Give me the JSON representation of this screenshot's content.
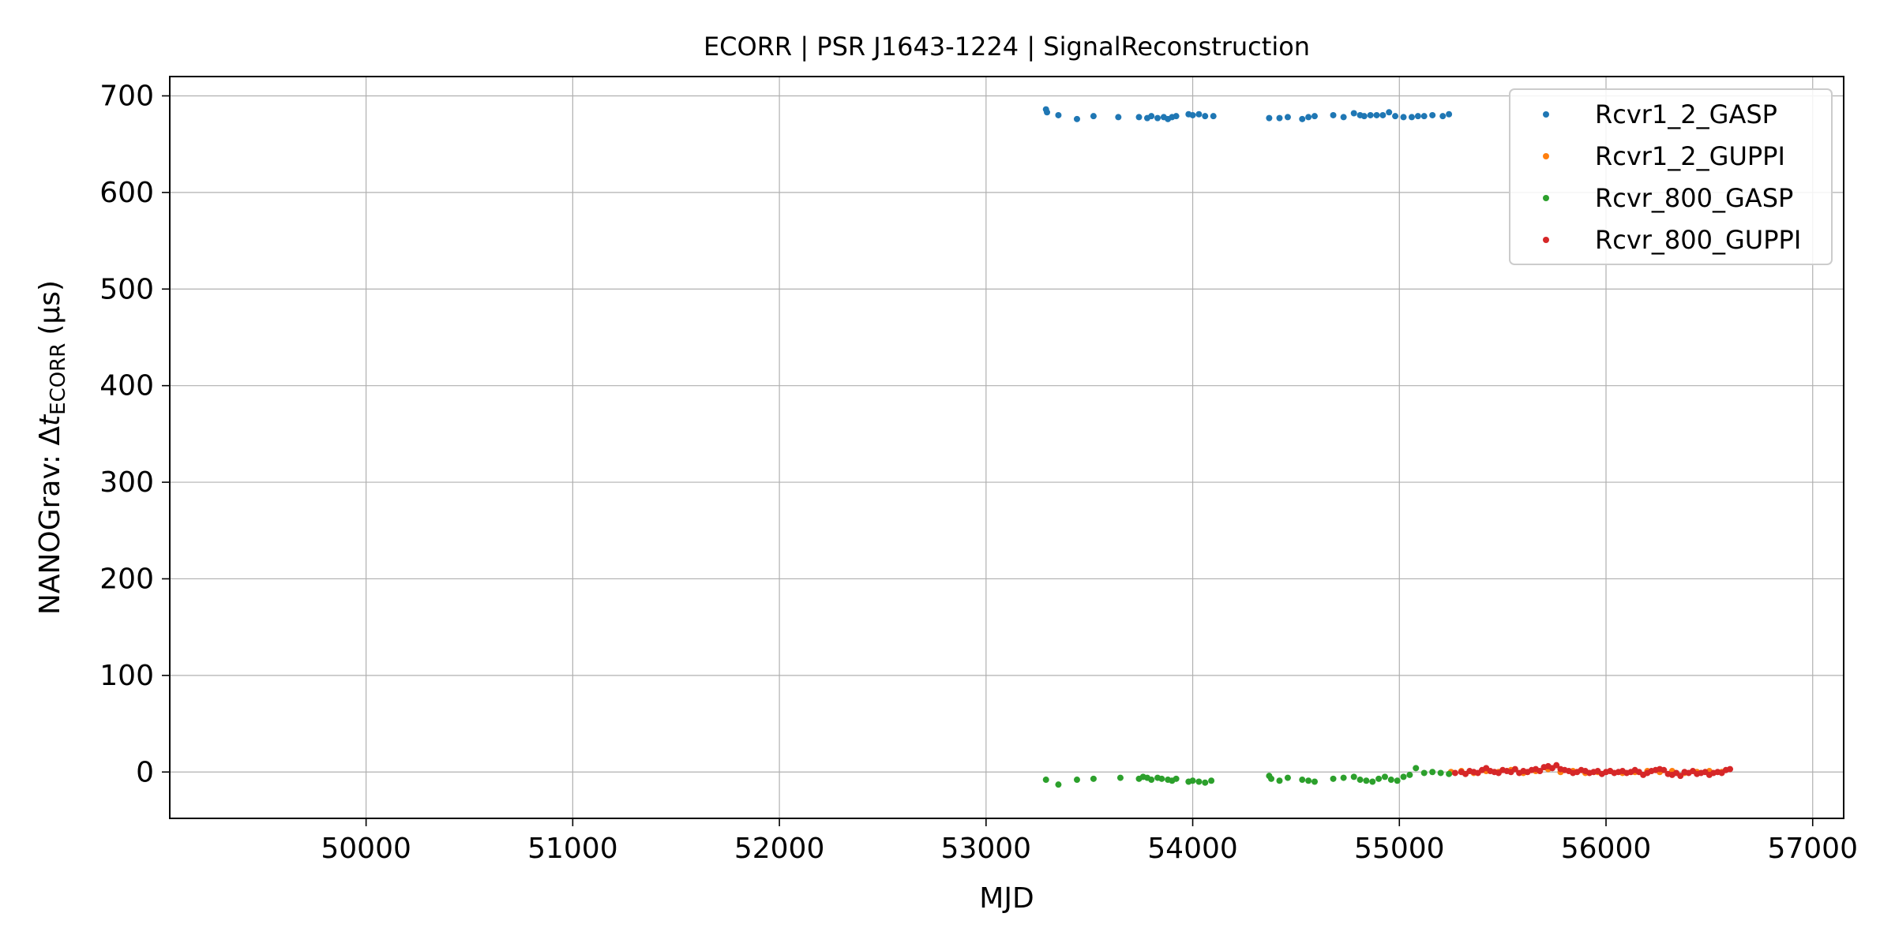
{
  "chart_data": {
    "type": "scatter",
    "title": "ECORR | PSR J1643-1224 | SignalReconstruction",
    "xlabel": "MJD",
    "ylabel_prefix": "NANOGrav: Δ",
    "ylabel_var": "t",
    "ylabel_sub": "ECORR",
    "ylabel_unit": "(μs)",
    "xlim": [
      49050,
      57150
    ],
    "ylim": [
      -48,
      720
    ],
    "xticks": [
      50000,
      51000,
      52000,
      53000,
      54000,
      55000,
      56000,
      57000
    ],
    "yticks": [
      0,
      100,
      200,
      300,
      400,
      500,
      600,
      700
    ],
    "grid": true,
    "legend_position": "top-right",
    "series": [
      {
        "name": "Rcvr1_2_GASP",
        "color": "#1f77b4",
        "x": [
          53290,
          53295,
          53350,
          53440,
          53520,
          53640,
          53740,
          53780,
          53800,
          53830,
          53860,
          53880,
          53900,
          53920,
          53980,
          54000,
          54030,
          54060,
          54100,
          54370,
          54420,
          54460,
          54530,
          54560,
          54590,
          54680,
          54730,
          54780,
          54810,
          54830,
          54860,
          54890,
          54920,
          54950,
          54980,
          55020,
          55060,
          55090,
          55120,
          55160,
          55210,
          55240
        ],
        "y": [
          686,
          683,
          680,
          676,
          679,
          678,
          678,
          677,
          679,
          677,
          678,
          676,
          678,
          679,
          681,
          680,
          681,
          679,
          679,
          677,
          677,
          678,
          676,
          678,
          679,
          680,
          678,
          682,
          680,
          679,
          680,
          680,
          680,
          683,
          679,
          678,
          678,
          679,
          679,
          680,
          679,
          681
        ]
      },
      {
        "name": "Rcvr1_2_GUPPI",
        "color": "#ff7f0e",
        "x": [
          55250,
          55300,
          55360,
          55420,
          55480,
          55540,
          55600,
          55660,
          55720,
          55780,
          55840,
          55900,
          55960,
          56020,
          56080,
          56140,
          56200,
          56260,
          56320,
          56380,
          56440,
          56500,
          56560
        ],
        "y": [
          0,
          1,
          -1,
          1,
          0,
          2,
          -1,
          1,
          3,
          0,
          1,
          -1,
          0,
          1,
          -1,
          0,
          1,
          0,
          1,
          -1,
          0,
          1,
          0
        ]
      },
      {
        "name": "Rcvr_800_GASP",
        "color": "#2ca02c",
        "x": [
          53290,
          53350,
          53440,
          53520,
          53650,
          53740,
          53760,
          53780,
          53800,
          53830,
          53850,
          53880,
          53900,
          53920,
          53980,
          54000,
          54030,
          54060,
          54090,
          54370,
          54380,
          54420,
          54460,
          54530,
          54560,
          54590,
          54680,
          54730,
          54780,
          54810,
          54840,
          54870,
          54900,
          54930,
          54960,
          54990,
          55020,
          55050,
          55080,
          55120,
          55160,
          55200,
          55240
        ],
        "y": [
          -8,
          -13,
          -8,
          -7,
          -6,
          -7,
          -5,
          -6,
          -8,
          -6,
          -7,
          -8,
          -9,
          -7,
          -10,
          -9,
          -10,
          -11,
          -9,
          -4,
          -7,
          -9,
          -6,
          -8,
          -9,
          -10,
          -7,
          -6,
          -5,
          -8,
          -9,
          -10,
          -7,
          -5,
          -8,
          -9,
          -5,
          -3,
          4,
          -1,
          0,
          -1,
          -2
        ]
      },
      {
        "name": "Rcvr_800_GUPPI",
        "color": "#d62728",
        "x": [
          55270,
          55300,
          55320,
          55340,
          55360,
          55380,
          55400,
          55420,
          55440,
          55460,
          55480,
          55500,
          55520,
          55540,
          55560,
          55580,
          55600,
          55620,
          55640,
          55660,
          55680,
          55700,
          55720,
          55740,
          55760,
          55780,
          55800,
          55820,
          55840,
          55860,
          55880,
          55900,
          55920,
          55940,
          55960,
          55980,
          56000,
          56020,
          56040,
          56060,
          56080,
          56100,
          56120,
          56140,
          56160,
          56180,
          56200,
          56220,
          56240,
          56260,
          56280,
          56300,
          56320,
          56340,
          56360,
          56380,
          56400,
          56420,
          56440,
          56460,
          56480,
          56500,
          56520,
          56540,
          56560,
          56580,
          56600
        ],
        "y": [
          -1,
          0,
          -2,
          1,
          0,
          -1,
          2,
          4,
          1,
          0,
          -1,
          2,
          1,
          0,
          3,
          -1,
          1,
          0,
          2,
          3,
          1,
          5,
          6,
          4,
          7,
          3,
          2,
          1,
          -1,
          0,
          2,
          1,
          -1,
          0,
          1,
          -2,
          0,
          1,
          -1,
          0,
          1,
          -1,
          0,
          2,
          0,
          -3,
          -1,
          1,
          2,
          3,
          2,
          -2,
          -3,
          -1,
          -4,
          0,
          -1,
          1,
          -2,
          -1,
          0,
          -3,
          -1,
          0,
          -1,
          2,
          3
        ]
      }
    ]
  }
}
